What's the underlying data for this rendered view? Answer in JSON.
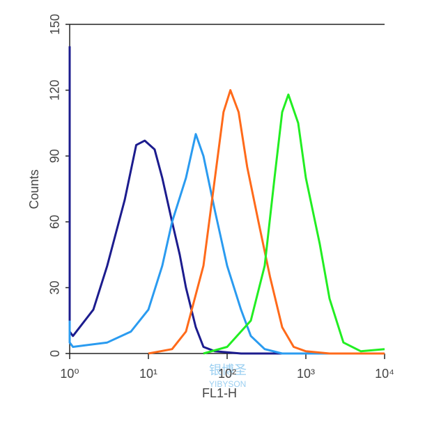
{
  "chart_data": {
    "type": "line",
    "x_label": "FL1-H",
    "y_label": "Counts",
    "x_log": true,
    "xlim": [
      1,
      10000
    ],
    "xticks": [
      {
        "value": 1,
        "label": "10⁰"
      },
      {
        "value": 10,
        "label": "10¹"
      },
      {
        "value": 100,
        "label": "10²"
      },
      {
        "value": 1000,
        "label": "10³"
      },
      {
        "value": 10000,
        "label": "10⁴"
      }
    ],
    "ylim": [
      0,
      150
    ],
    "yticks": [
      0,
      30,
      60,
      90,
      120,
      150
    ],
    "watermark": [
      "银博圣",
      "YIBYSON"
    ],
    "series": [
      {
        "color": "#1c1c8e",
        "x": [
          1,
          1,
          1.1,
          2,
          3,
          5,
          7,
          9,
          12,
          15,
          20,
          25,
          30,
          40,
          50,
          70,
          150,
          10000
        ],
        "values": [
          140,
          10,
          8,
          20,
          40,
          70,
          95,
          97,
          93,
          80,
          60,
          45,
          30,
          12,
          3,
          1,
          0,
          0
        ]
      },
      {
        "color": "#2a9bf0",
        "x": [
          1,
          1,
          1.1,
          3,
          6,
          10,
          15,
          20,
          30,
          40,
          50,
          70,
          100,
          150,
          200,
          300,
          500,
          10000
        ],
        "values": [
          15,
          5,
          3,
          5,
          10,
          20,
          40,
          60,
          80,
          100,
          90,
          65,
          40,
          20,
          8,
          2,
          0,
          0
        ]
      },
      {
        "color": "#ff6a1a",
        "x": [
          10,
          20,
          30,
          50,
          70,
          90,
          110,
          140,
          180,
          250,
          350,
          500,
          700,
          1000,
          2000,
          10000
        ],
        "values": [
          0,
          2,
          10,
          40,
          80,
          110,
          120,
          110,
          85,
          60,
          35,
          12,
          3,
          1,
          0,
          0
        ]
      },
      {
        "color": "#22ee22",
        "x": [
          50,
          100,
          200,
          300,
          400,
          500,
          600,
          800,
          1000,
          1500,
          2000,
          3000,
          5000,
          10000
        ],
        "values": [
          0,
          3,
          15,
          40,
          80,
          110,
          118,
          105,
          80,
          50,
          25,
          5,
          1,
          2
        ]
      }
    ]
  }
}
